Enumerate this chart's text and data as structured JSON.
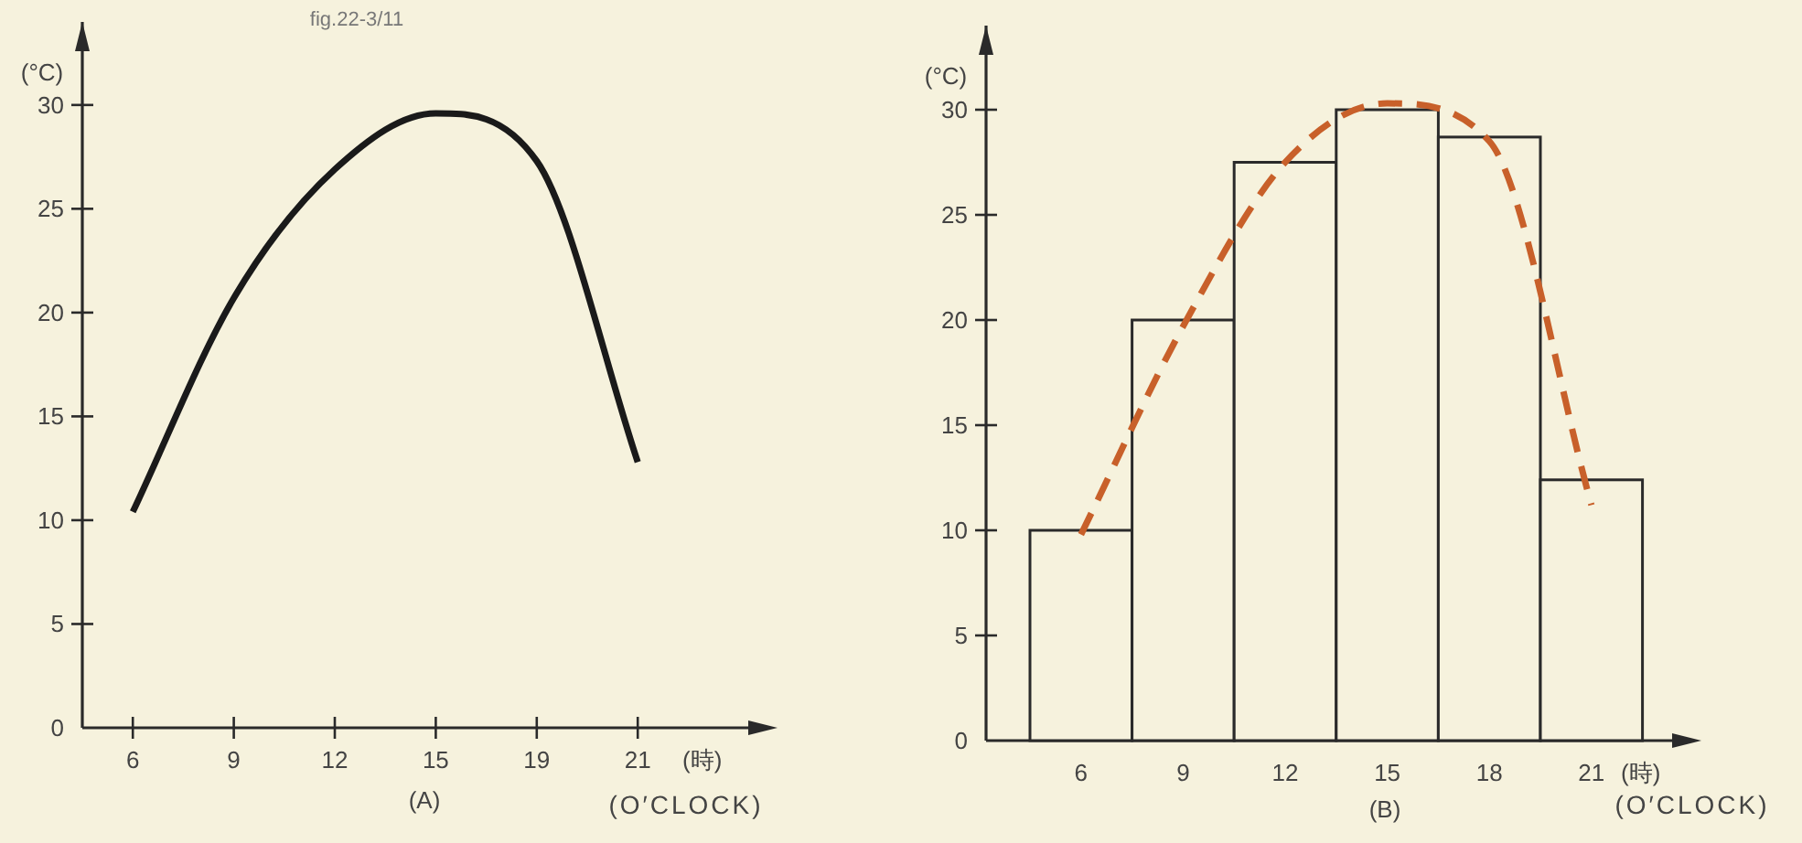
{
  "chart_data": [
    {
      "type": "line",
      "title": "(A)",
      "ylabel": "(°C)",
      "xlabel": "(時)",
      "annotations": [
        "fig.22-3/11",
        "(O′CLOCK)"
      ],
      "categories": [
        "6",
        "9",
        "12",
        "15",
        "19",
        "21"
      ],
      "ylim": [
        0,
        34
      ],
      "yticks": [
        0,
        5,
        10,
        15,
        20,
        25,
        30
      ],
      "series": [
        {
          "color": "#1a1a1a",
          "values": [
            10.4,
            20.7,
            26.9,
            29.6,
            27.3,
            12.8
          ]
        }
      ]
    },
    {
      "type": "bar",
      "title": "(B)",
      "ylabel": "(°C)",
      "xlabel": "(時)",
      "annotations": [
        "(O′CLOCK)"
      ],
      "categories": [
        "6",
        "9",
        "12",
        "15",
        "18",
        "21"
      ],
      "ylim": [
        0,
        34
      ],
      "yticks": [
        0,
        5,
        10,
        15,
        20,
        25,
        30
      ],
      "series": [
        {
          "type": "bar",
          "color": "#f6f2dd",
          "values": [
            10,
            20,
            27.5,
            30,
            28.7,
            12.4
          ]
        },
        {
          "type": "line",
          "color": "#c8602a",
          "line_style": "dashed",
          "values": [
            9.8,
            19.7,
            27.5,
            30.3,
            28.5,
            11.2
          ]
        }
      ]
    }
  ]
}
